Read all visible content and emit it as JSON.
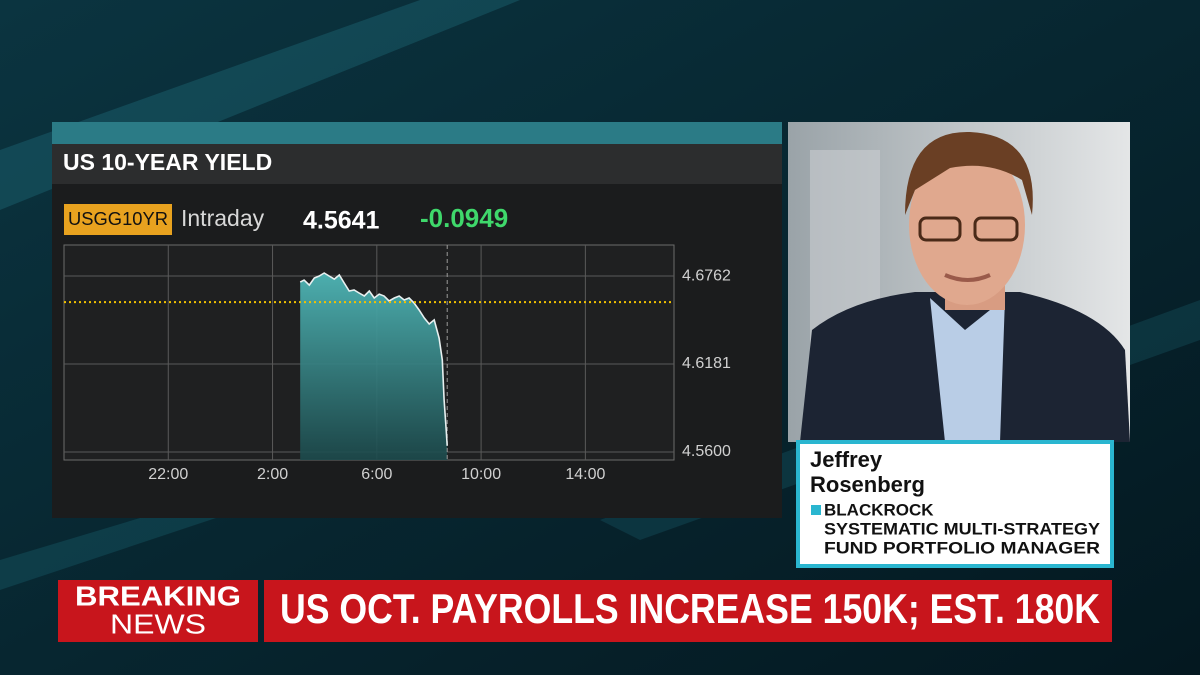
{
  "chart_data": {
    "type": "area",
    "title": "US 10-YEAR YIELD",
    "ticker": "USGG10YR",
    "period": "Intraday",
    "last_value": 4.5641,
    "change": -0.0949,
    "x": [
      27.06,
      27.21,
      27.41,
      27.6,
      27.79,
      27.98,
      28.17,
      28.37,
      28.56,
      28.75,
      28.94,
      29.13,
      29.32,
      29.52,
      29.71,
      29.9,
      30.09,
      30.28,
      30.47,
      30.67,
      30.86,
      31.05,
      31.24,
      31.43,
      31.62,
      31.82,
      32.01,
      32.2,
      32.39,
      32.51,
      32.58,
      32.66,
      32.7
    ],
    "values": [
      4.6722,
      4.6735,
      4.6702,
      4.6749,
      4.6762,
      4.6782,
      4.6762,
      4.6742,
      4.6769,
      4.6716,
      4.6663,
      4.667,
      4.665,
      4.663,
      4.6663,
      4.6617,
      4.6643,
      4.663,
      4.6597,
      4.6617,
      4.663,
      4.6604,
      4.6617,
      4.6584,
      4.6538,
      4.6485,
      4.6445,
      4.6472,
      4.6353,
      4.6208,
      4.5944,
      4.5746,
      4.5641
    ],
    "color": "#3ea7a8",
    "line_color": "#e8f0f0",
    "reference_line": 4.659,
    "reference_color": "#f2c200",
    "xlim": [
      18,
      41.4
    ],
    "xticks": [
      {
        "value": 22,
        "label": "22:00"
      },
      {
        "value": 26,
        "label": "2:00"
      },
      {
        "value": 30,
        "label": "6:00"
      },
      {
        "value": 34,
        "label": "10:00"
      },
      {
        "value": 38,
        "label": "14:00"
      }
    ],
    "ylim": [
      4.5547,
      4.6967
    ],
    "yticks": [
      {
        "value": 4.56,
        "label": "4.5600"
      },
      4.6181,
      4.6762
    ],
    "grid": true
  },
  "guest": {
    "name": [
      "Jeffrey",
      "Rosenberg"
    ],
    "company": "BLACKROCK",
    "title": [
      "SYSTEMATIC MULTI-STRATEGY",
      "FUND PORTFOLIO MANAGER"
    ]
  },
  "ticker_bar": {
    "label": [
      "BREAKING",
      "NEWS"
    ],
    "headline": "US OCT. PAYROLLS INCREASE 150K; EST. 180K"
  }
}
